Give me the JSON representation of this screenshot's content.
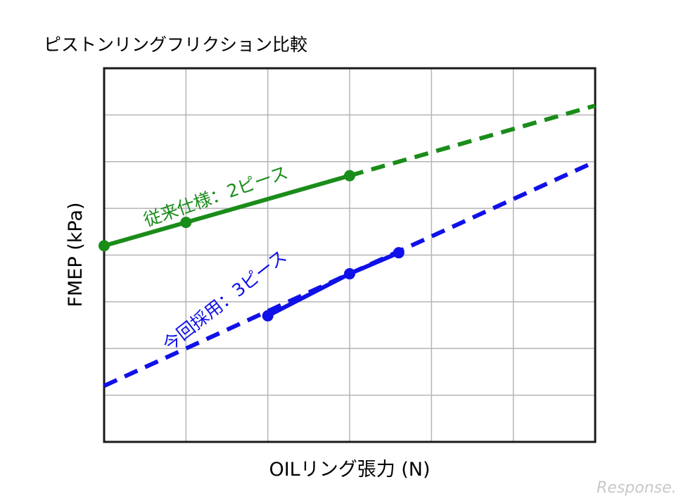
{
  "chart_data": {
    "type": "line",
    "title": "ピストンリングフリクション比較",
    "xlabel": "OILリング張力 (N)",
    "ylabel": "FMEP (kPa)",
    "xlim": [
      0,
      6
    ],
    "ylim": [
      0,
      8
    ],
    "grid": true,
    "x_gridlines": 6,
    "y_gridlines": 8,
    "series": [
      {
        "name": "従来仕様：2ピース",
        "color": "#1a8c1a",
        "solid": {
          "x": [
            0,
            1,
            3
          ],
          "y": [
            4.2,
            4.7,
            5.7
          ]
        },
        "dashed": {
          "x": [
            3,
            6
          ],
          "y": [
            5.7,
            7.2
          ]
        },
        "markers": {
          "x": [
            0,
            1,
            3
          ],
          "y": [
            4.2,
            4.7,
            5.7
          ]
        }
      },
      {
        "name": "今回採用：3ピース",
        "color": "#1010e8",
        "solid": {
          "x": [
            2,
            3,
            3.6
          ],
          "y": [
            2.7,
            3.6,
            4.05
          ]
        },
        "dashed": {
          "x": [
            0,
            6
          ],
          "y": [
            1.2,
            6.0
          ]
        },
        "markers": {
          "x": [
            2,
            3,
            3.6
          ],
          "y": [
            2.7,
            3.6,
            4.05
          ]
        }
      }
    ]
  },
  "watermark": "Response."
}
